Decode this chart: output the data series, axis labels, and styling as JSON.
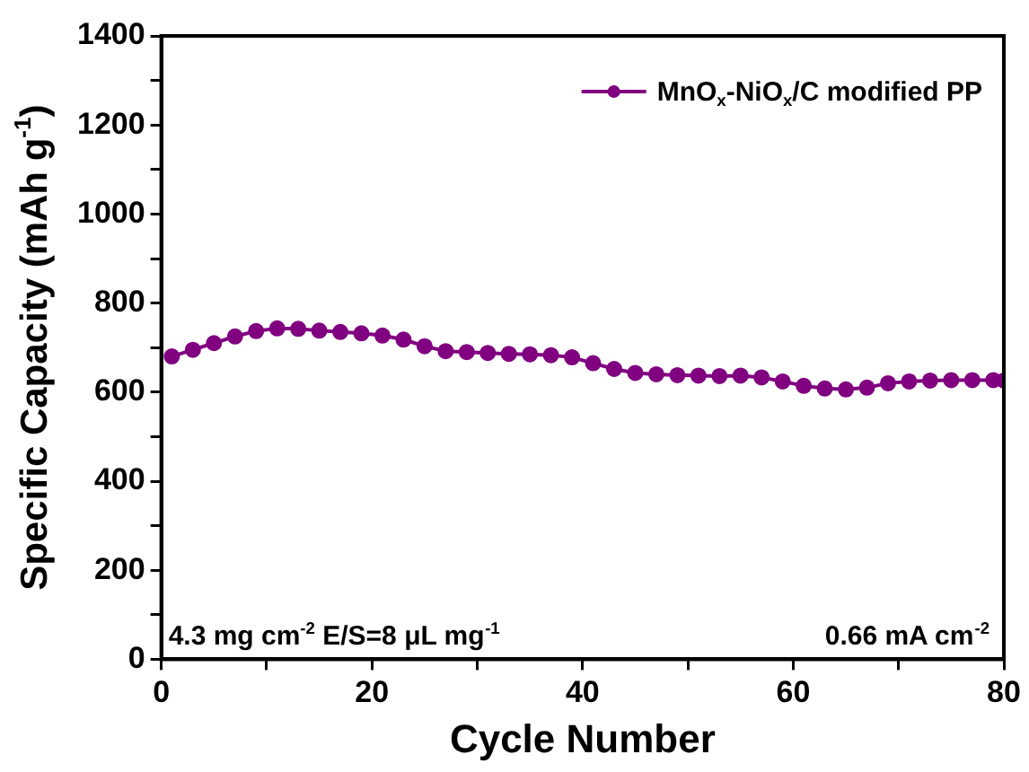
{
  "chart_data": {
    "type": "line",
    "xlabel": "Cycle Number",
    "ylabel": "Specific Capacity (mAh g$^{-1}$)",
    "x": [
      1,
      3,
      5,
      7,
      9,
      11,
      13,
      15,
      17,
      19,
      21,
      23,
      25,
      27,
      29,
      31,
      33,
      35,
      37,
      39,
      41,
      43,
      45,
      47,
      49,
      51,
      53,
      55,
      57,
      59,
      61,
      63,
      65,
      67,
      69,
      71,
      73,
      75,
      77,
      79,
      80
    ],
    "series": [
      {
        "name": "MnO$_{x}$-NiO$_{x}$/C modified PP",
        "color": "#800080",
        "values": [
          680,
          695,
          710,
          725,
          737,
          743,
          742,
          738,
          735,
          732,
          727,
          718,
          703,
          692,
          690,
          688,
          686,
          685,
          683,
          678,
          665,
          652,
          643,
          640,
          638,
          637,
          636,
          637,
          633,
          624,
          614,
          608,
          606,
          610,
          620,
          624,
          626,
          627,
          627,
          627,
          626
        ]
      }
    ],
    "xlim": [
      0,
      80
    ],
    "xticks": [
      0,
      {
        "value": 10,
        "label": null
      },
      20,
      {
        "value": 30,
        "label": null
      },
      40,
      {
        "value": 50,
        "label": null
      },
      60,
      {
        "value": 70,
        "label": null
      },
      80
    ],
    "ylim": [
      0,
      1400
    ],
    "yticks": [
      0,
      {
        "value": 100,
        "label": null
      },
      200,
      {
        "value": 300,
        "label": null
      },
      400,
      {
        "value": 500,
        "label": null
      },
      600,
      {
        "value": 700,
        "label": null
      },
      800,
      {
        "value": 900,
        "label": null
      },
      1000,
      {
        "value": 1100,
        "label": null
      },
      1200,
      {
        "value": 1300,
        "label": null
      },
      1400
    ],
    "annotations": [
      "4.3 mg cm$^{-2}$ E/S=8 μL mg$^{-1}$",
      "0.66 mA cm$^{-2}$"
    ],
    "legend": "top right",
    "marker": "circle",
    "line_style": "solid",
    "grid": false
  }
}
